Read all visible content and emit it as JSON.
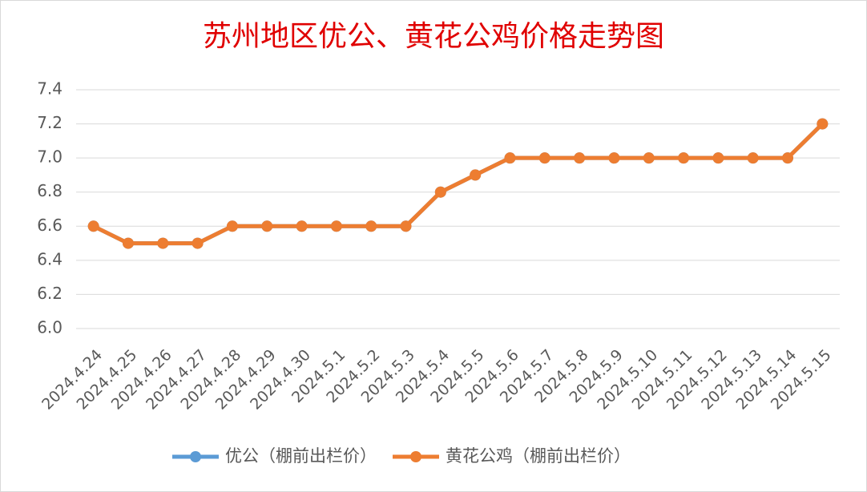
{
  "chart_data": {
    "type": "line",
    "title": "苏州地区优公、黄花公鸡价格走势图",
    "categories": [
      "2024.4.24",
      "2024.4.25",
      "2024.4.26",
      "2024.4.27",
      "2024.4.28",
      "2024.4.29",
      "2024.4.30",
      "2024.5.1",
      "2024.5.2",
      "2024.5.3",
      "2024.5.4",
      "2024.5.5",
      "2024.5.6",
      "2024.5.7",
      "2024.5.8",
      "2024.5.9",
      "2024.5.10",
      "2024.5.11",
      "2024.5.12",
      "2024.5.13",
      "2024.5.14",
      "2024.5.15"
    ],
    "series": [
      {
        "name": "优公（棚前出栏价）",
        "color": "#5b9bd5",
        "values": [
          6.6,
          6.5,
          6.5,
          6.5,
          6.6,
          6.6,
          6.6,
          6.6,
          6.6,
          6.6,
          6.8,
          6.9,
          7.0,
          7.0,
          7.0,
          7.0,
          7.0,
          7.0,
          7.0,
          7.0,
          7.0,
          7.2
        ]
      },
      {
        "name": "黄花公鸡（棚前出栏价）",
        "color": "#ed7d31",
        "values": [
          6.6,
          6.5,
          6.5,
          6.5,
          6.6,
          6.6,
          6.6,
          6.6,
          6.6,
          6.6,
          6.8,
          6.9,
          7.0,
          7.0,
          7.0,
          7.0,
          7.0,
          7.0,
          7.0,
          7.0,
          7.0,
          7.2
        ]
      }
    ],
    "ylim": [
      6.0,
      7.4
    ],
    "yticks": [
      {
        "value": 6.0,
        "label": "6.0"
      },
      6.2,
      6.4,
      6.6,
      6.8,
      {
        "value": 7.0,
        "label": "7.0"
      },
      7.2,
      7.4
    ],
    "grid": true,
    "legend": "bottom"
  }
}
